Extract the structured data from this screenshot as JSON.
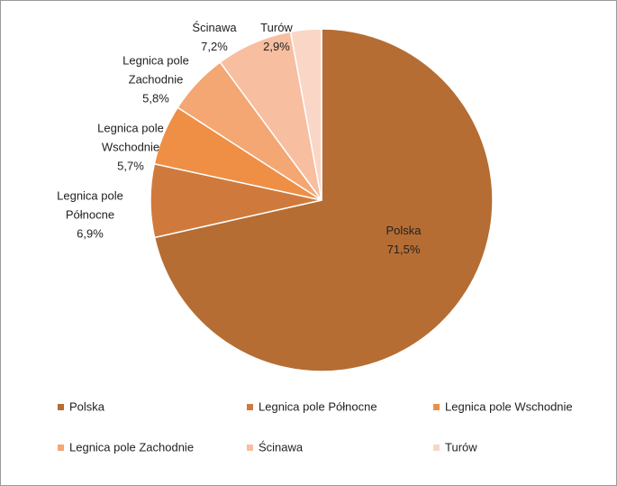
{
  "chart_data": {
    "type": "pie",
    "categories": [
      "Polska",
      "Legnica pole Północne",
      "Legnica pole Wschodnie",
      "Legnica pole Zachodnie",
      "Ścinawa",
      "Turów"
    ],
    "values": [
      71.5,
      6.9,
      5.7,
      5.8,
      7.2,
      2.9
    ],
    "value_labels": [
      "71,5%",
      "6,9%",
      "5,7%",
      "5,8%",
      "7,2%",
      "2,9%"
    ],
    "colors": [
      "#b56d33",
      "#cf7a3c",
      "#ee8f45",
      "#f4a673",
      "#f7bea0",
      "#f9d6c6"
    ],
    "legend": "bottom"
  }
}
